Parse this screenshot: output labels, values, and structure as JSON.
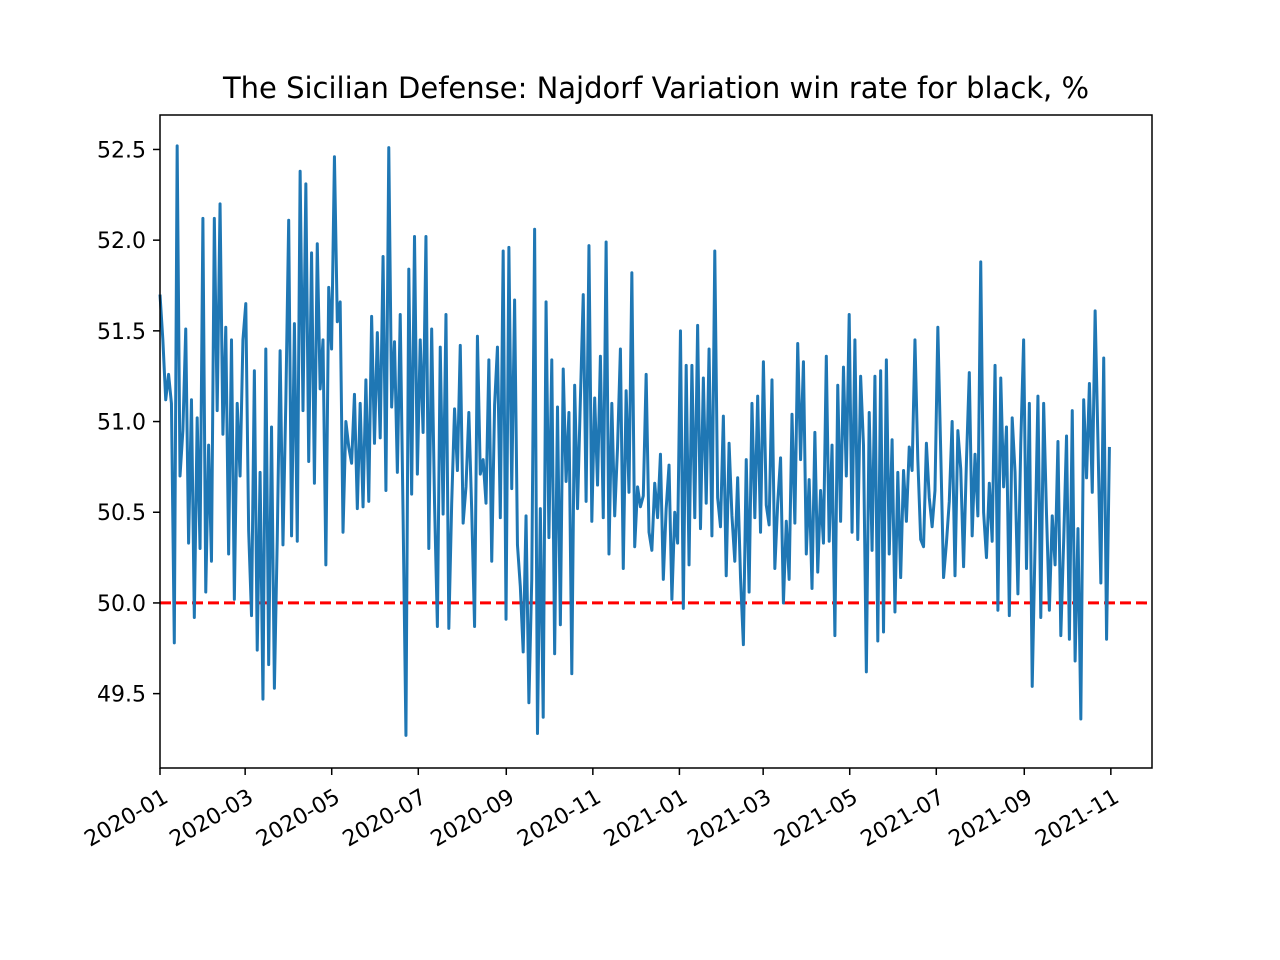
{
  "chart_data": {
    "type": "line",
    "title": "The Sicilian Defense: Najdorf Variation win rate for black, %",
    "xlabel": "",
    "ylabel": "",
    "x_range": [
      "2020-01-01",
      "2021-11-30"
    ],
    "ylim": [
      49.09,
      52.69
    ],
    "x_ticks": [
      "2020-01",
      "2020-03",
      "2020-05",
      "2020-07",
      "2020-09",
      "2020-11",
      "2021-01",
      "2021-03",
      "2021-05",
      "2021-07",
      "2021-09",
      "2021-11"
    ],
    "y_ticks": [
      "49.5",
      "50.0",
      "50.5",
      "51.0",
      "51.5",
      "52.0",
      "52.5"
    ],
    "grid": false,
    "legend": "none",
    "series_color": "#1f77b4",
    "reference_line": {
      "y": 50.0,
      "color": "#ff0000",
      "style": "dashed"
    },
    "series": [
      {
        "x_start": "2020-01-01",
        "x_end": "2021-10-31",
        "values": [
          51.7,
          51.45,
          51.12,
          51.26,
          51.1,
          49.78,
          52.52,
          50.7,
          50.95,
          51.51,
          50.33,
          51.12,
          49.92,
          51.02,
          50.3,
          52.12,
          50.06,
          50.87,
          50.23,
          52.12,
          51.06,
          52.2,
          50.93,
          51.52,
          50.27,
          51.45,
          50.02,
          51.1,
          50.7,
          51.45,
          51.65,
          50.4,
          49.93,
          51.28,
          49.74,
          50.72,
          49.47,
          51.4,
          49.66,
          50.97,
          49.53,
          50.35,
          51.39,
          50.32,
          51.11,
          52.11,
          50.37,
          51.54,
          50.34,
          52.38,
          51.06,
          52.31,
          50.78,
          51.93,
          50.66,
          51.98,
          51.18,
          51.45,
          50.21,
          51.74,
          51.4,
          52.46,
          51.55,
          51.66,
          50.39,
          51.0,
          50.86,
          50.77,
          51.15,
          50.52,
          51.1,
          50.53,
          51.23,
          50.56,
          51.58,
          50.88,
          51.49,
          50.91,
          51.91,
          50.62,
          52.51,
          51.08,
          51.44,
          50.72,
          51.59,
          50.48,
          49.27,
          51.84,
          50.6,
          52.02,
          50.71,
          51.45,
          50.94,
          52.02,
          50.3,
          51.51,
          50.55,
          49.87,
          51.41,
          50.49,
          51.59,
          49.86,
          50.55,
          51.07,
          50.73,
          51.42,
          50.44,
          50.64,
          51.05,
          50.51,
          49.87,
          51.47,
          50.71,
          50.79,
          50.55,
          51.34,
          50.23,
          51.09,
          51.41,
          50.47,
          51.94,
          49.91,
          51.96,
          50.63,
          51.67,
          50.32,
          50.09,
          49.73,
          50.48,
          49.45,
          50.13,
          52.06,
          49.28,
          50.52,
          49.37,
          51.66,
          50.36,
          51.34,
          49.72,
          51.08,
          49.88,
          51.29,
          50.67,
          51.05,
          49.61,
          51.2,
          50.52,
          51.12,
          51.7,
          50.56,
          51.97,
          50.45,
          51.13,
          50.65,
          51.36,
          50.47,
          51.99,
          50.27,
          51.1,
          50.48,
          50.86,
          51.4,
          50.19,
          51.17,
          50.61,
          51.82,
          50.31,
          50.64,
          50.53,
          50.59,
          51.26,
          50.39,
          50.29,
          50.66,
          50.47,
          50.82,
          50.13,
          50.52,
          50.76,
          50.02,
          50.5,
          50.33,
          51.5,
          49.97,
          51.31,
          50.21,
          51.31,
          50.47,
          51.53,
          50.41,
          51.24,
          50.55,
          51.4,
          50.37,
          51.94,
          50.58,
          50.42,
          51.03,
          50.15,
          50.88,
          50.48,
          50.23,
          50.69,
          50.14,
          49.77,
          50.79,
          50.06,
          51.1,
          50.47,
          51.14,
          50.39,
          51.33,
          50.54,
          50.43,
          51.23,
          50.19,
          50.55,
          50.8,
          50.0,
          50.45,
          50.13,
          51.04,
          50.44,
          51.43,
          50.79,
          51.33,
          50.27,
          50.68,
          50.08,
          50.94,
          50.17,
          50.62,
          50.33,
          51.36,
          50.34,
          50.87,
          49.82,
          51.2,
          50.45,
          51.3,
          50.7,
          51.59,
          50.39,
          51.45,
          50.35,
          51.25,
          50.87,
          49.62,
          51.05,
          50.29,
          51.25,
          49.79,
          51.28,
          49.84,
          51.34,
          50.27,
          50.9,
          49.95,
          50.72,
          50.14,
          50.73,
          50.45,
          50.86,
          50.73,
          51.45,
          50.79,
          50.35,
          50.31,
          50.88,
          50.58,
          50.42,
          50.62,
          51.52,
          50.84,
          50.14,
          50.33,
          50.56,
          51.0,
          50.15,
          50.95,
          50.74,
          50.2,
          50.78,
          51.27,
          50.37,
          50.82,
          50.48,
          51.88,
          50.5,
          50.25,
          50.66,
          50.34,
          51.31,
          49.96,
          51.24,
          50.64,
          50.97,
          49.93,
          51.02,
          50.72,
          50.05,
          50.88,
          51.45,
          50.19,
          51.1,
          49.54,
          50.32,
          51.14,
          49.92,
          51.1,
          50.49,
          49.96,
          50.48,
          50.21,
          50.89,
          49.82,
          50.34,
          50.92,
          49.8,
          51.06,
          49.68,
          50.41,
          49.36,
          51.12,
          50.69,
          51.21,
          50.61,
          51.61,
          50.88,
          50.11,
          51.35,
          49.8,
          50.86
        ]
      }
    ]
  }
}
